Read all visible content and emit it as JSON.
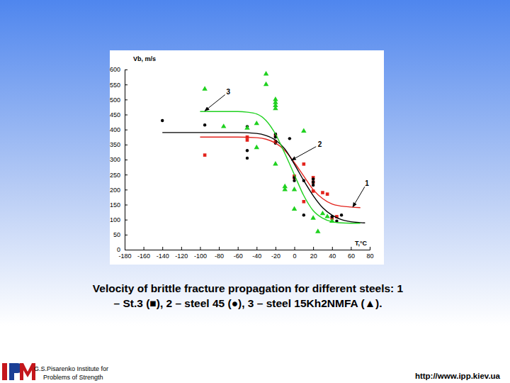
{
  "chart_data": {
    "type": "scatter",
    "ylabel": "Vb, m/s",
    "xlabel": "T,°C",
    "xlim": [
      -180,
      80
    ],
    "xticks": [
      -180,
      -160,
      -140,
      -120,
      -100,
      -80,
      -60,
      -40,
      -20,
      0,
      20,
      40,
      60,
      80
    ],
    "ylim": [
      0,
      600
    ],
    "yticks": [
      0,
      50,
      100,
      150,
      200,
      250,
      300,
      350,
      400,
      450,
      500,
      550,
      600
    ],
    "grid": false,
    "series": [
      {
        "type": "scatter",
        "marker": "square",
        "color": "#e3231c",
        "x": [
          -95,
          -50,
          -50,
          -20,
          -20,
          0,
          0,
          10,
          10,
          20,
          20,
          20,
          30,
          35,
          40,
          45
        ],
        "values": [
          315,
          375,
          365,
          380,
          360,
          245,
          240,
          285,
          160,
          240,
          225,
          195,
          190,
          185,
          105,
          110
        ]
      },
      {
        "type": "scatter",
        "marker": "circle",
        "color": "#000000",
        "x": [
          -140,
          -95,
          -50,
          -50,
          -50,
          -20,
          -20,
          -20,
          -5,
          0,
          0,
          10,
          10,
          20,
          20,
          20,
          40,
          45,
          50
        ],
        "values": [
          430,
          415,
          410,
          330,
          305,
          385,
          375,
          355,
          370,
          240,
          230,
          230,
          115,
          235,
          225,
          215,
          110,
          95,
          115
        ]
      },
      {
        "type": "scatter",
        "marker": "triangle",
        "color": "#1fd11f",
        "x": [
          -95,
          -75,
          -50,
          -40,
          -40,
          -30,
          -30,
          -20,
          -20,
          -20,
          -20,
          -20,
          -10,
          -10,
          0,
          0,
          10,
          20,
          25,
          30,
          35,
          40
        ],
        "values": [
          535,
          410,
          405,
          420,
          340,
          585,
          550,
          500,
          490,
          480,
          470,
          285,
          210,
          200,
          200,
          135,
          395,
          105,
          60,
          120,
          110,
          95
        ]
      },
      {
        "type": "line",
        "line_style": "solid",
        "color": "#e3231c",
        "x": [
          -100,
          -60,
          -40,
          -30,
          -20,
          -10,
          0,
          10,
          20,
          30,
          40,
          50,
          60,
          70
        ],
        "values": [
          375,
          375,
          373,
          368,
          355,
          330,
          290,
          245,
          200,
          170,
          152,
          145,
          142,
          140
        ]
      },
      {
        "type": "line",
        "line_style": "solid",
        "color": "#000000",
        "x": [
          -140,
          -60,
          -40,
          -30,
          -20,
          -10,
          0,
          10,
          20,
          30,
          40,
          50,
          60,
          70,
          75
        ],
        "values": [
          390,
          390,
          387,
          380,
          365,
          335,
          285,
          230,
          180,
          140,
          115,
          100,
          93,
          90,
          89
        ]
      },
      {
        "type": "line",
        "line_style": "solid",
        "color": "#1fd11f",
        "x": [
          -100,
          -60,
          -50,
          -40,
          -30,
          -20,
          -10,
          0,
          10,
          20,
          30,
          40,
          50,
          60,
          70
        ],
        "values": [
          460,
          460,
          458,
          452,
          430,
          385,
          320,
          250,
          180,
          130,
          105,
          93,
          89,
          88,
          88
        ]
      }
    ],
    "annotations": [
      {
        "text": "3",
        "x": -70,
        "y": 525,
        "arrow_x": -95,
        "arrow_y": 462
      },
      {
        "text": "2",
        "x": 27,
        "y": 350,
        "arrow_x": -3,
        "arrow_y": 298
      },
      {
        "text": "1",
        "x": 77,
        "y": 222,
        "arrow_x": 62,
        "arrow_y": 142
      }
    ]
  },
  "caption": [
    "Velocity of brittle fracture propagation for different steels: 1",
    "– St.3 (■), 2 – steel 45 (●), 3 – steel 15Kh2NMFA (▲)."
  ],
  "institute": [
    "G.S.Pisarenko Institute for",
    "Problems of Strength"
  ],
  "url": "http://www.ipp.kiev.ua"
}
